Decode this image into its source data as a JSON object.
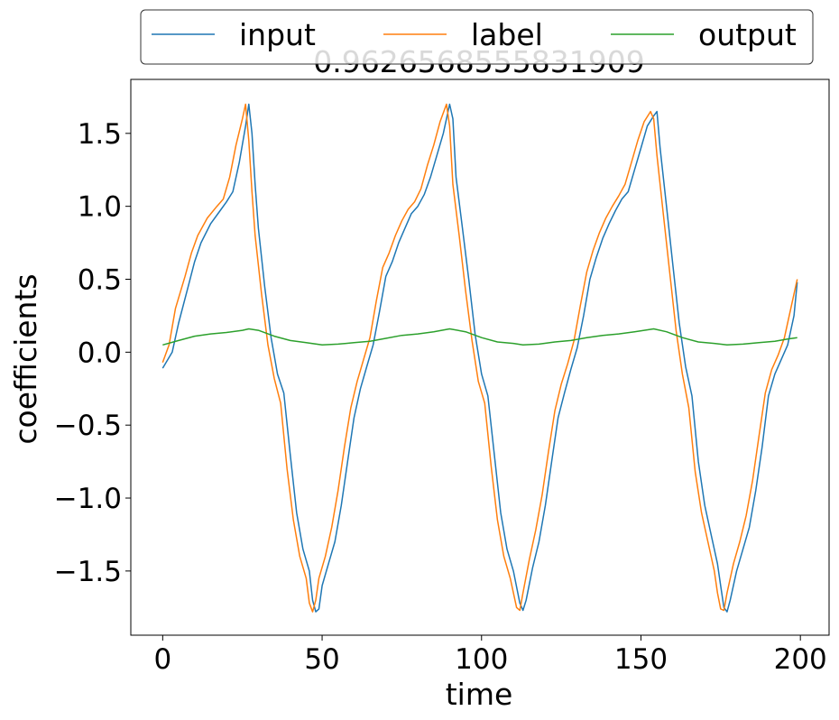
{
  "chart_data": {
    "type": "line",
    "title": "0.9626568555831909",
    "xlabel": "time",
    "ylabel": "coefficients",
    "xlim": [
      -10,
      209
    ],
    "ylim": [
      -1.94,
      1.87
    ],
    "x_ticks": [
      0,
      50,
      100,
      150,
      200
    ],
    "x_tick_labels": [
      "0",
      "50",
      "100",
      "150",
      "200"
    ],
    "y_ticks": [
      -1.5,
      -1.0,
      -0.5,
      0.0,
      0.5,
      1.0,
      1.5
    ],
    "y_tick_labels": [
      "−1.5",
      "−1.0",
      "−0.5",
      "0.0",
      "0.5",
      "1.0",
      "1.5"
    ],
    "grid": false,
    "legend_placement": "top-center above plot, 3 columns",
    "series": [
      {
        "name": "input",
        "color": "#1f77b4",
        "points": [
          [
            0,
            -0.11
          ],
          [
            3,
            0.0
          ],
          [
            5,
            0.2
          ],
          [
            8,
            0.45
          ],
          [
            10,
            0.62
          ],
          [
            12,
            0.75
          ],
          [
            15,
            0.88
          ],
          [
            18,
            0.97
          ],
          [
            20,
            1.03
          ],
          [
            22,
            1.1
          ],
          [
            24,
            1.3
          ],
          [
            26,
            1.55
          ],
          [
            27,
            1.7
          ],
          [
            28,
            1.5
          ],
          [
            29,
            1.15
          ],
          [
            30,
            0.85
          ],
          [
            32,
            0.45
          ],
          [
            34,
            0.1
          ],
          [
            36,
            -0.15
          ],
          [
            38,
            -0.28
          ],
          [
            40,
            -0.7
          ],
          [
            42,
            -1.1
          ],
          [
            44,
            -1.35
          ],
          [
            46,
            -1.5
          ],
          [
            47,
            -1.7
          ],
          [
            48,
            -1.78
          ],
          [
            49,
            -1.76
          ],
          [
            50,
            -1.6
          ],
          [
            52,
            -1.45
          ],
          [
            54,
            -1.3
          ],
          [
            56,
            -1.05
          ],
          [
            58,
            -0.75
          ],
          [
            60,
            -0.45
          ],
          [
            62,
            -0.25
          ],
          [
            64,
            -0.1
          ],
          [
            66,
            0.05
          ],
          [
            68,
            0.28
          ],
          [
            70,
            0.52
          ],
          [
            72,
            0.62
          ],
          [
            74,
            0.75
          ],
          [
            76,
            0.85
          ],
          [
            78,
            0.95
          ],
          [
            80,
            1.0
          ],
          [
            82,
            1.08
          ],
          [
            84,
            1.2
          ],
          [
            86,
            1.35
          ],
          [
            88,
            1.5
          ],
          [
            90,
            1.7
          ],
          [
            91,
            1.6
          ],
          [
            92,
            1.2
          ],
          [
            94,
            0.85
          ],
          [
            96,
            0.5
          ],
          [
            98,
            0.12
          ],
          [
            100,
            -0.15
          ],
          [
            102,
            -0.3
          ],
          [
            104,
            -0.7
          ],
          [
            106,
            -1.1
          ],
          [
            108,
            -1.35
          ],
          [
            110,
            -1.5
          ],
          [
            112,
            -1.72
          ],
          [
            113,
            -1.77
          ],
          [
            114,
            -1.7
          ],
          [
            116,
            -1.48
          ],
          [
            118,
            -1.3
          ],
          [
            120,
            -1.05
          ],
          [
            122,
            -0.75
          ],
          [
            124,
            -0.45
          ],
          [
            126,
            -0.28
          ],
          [
            128,
            -0.12
          ],
          [
            130,
            0.03
          ],
          [
            132,
            0.25
          ],
          [
            134,
            0.5
          ],
          [
            136,
            0.65
          ],
          [
            138,
            0.78
          ],
          [
            140,
            0.88
          ],
          [
            142,
            0.97
          ],
          [
            144,
            1.05
          ],
          [
            146,
            1.1
          ],
          [
            148,
            1.25
          ],
          [
            150,
            1.4
          ],
          [
            152,
            1.55
          ],
          [
            154,
            1.62
          ],
          [
            155,
            1.65
          ],
          [
            156,
            1.4
          ],
          [
            158,
            1.0
          ],
          [
            160,
            0.6
          ],
          [
            162,
            0.2
          ],
          [
            164,
            -0.1
          ],
          [
            166,
            -0.3
          ],
          [
            168,
            -0.75
          ],
          [
            170,
            -1.05
          ],
          [
            172,
            -1.25
          ],
          [
            174,
            -1.45
          ],
          [
            175,
            -1.6
          ],
          [
            176,
            -1.75
          ],
          [
            177,
            -1.78
          ],
          [
            178,
            -1.7
          ],
          [
            180,
            -1.5
          ],
          [
            182,
            -1.35
          ],
          [
            184,
            -1.2
          ],
          [
            186,
            -0.95
          ],
          [
            188,
            -0.65
          ],
          [
            190,
            -0.3
          ],
          [
            192,
            -0.15
          ],
          [
            194,
            -0.05
          ],
          [
            196,
            0.05
          ],
          [
            198,
            0.25
          ],
          [
            199,
            0.48
          ]
        ]
      },
      {
        "name": "label",
        "color": "#ff7f0e",
        "points": [
          [
            0,
            -0.07
          ],
          [
            2,
            0.05
          ],
          [
            4,
            0.3
          ],
          [
            7,
            0.52
          ],
          [
            9,
            0.68
          ],
          [
            11,
            0.8
          ],
          [
            14,
            0.92
          ],
          [
            17,
            1.0
          ],
          [
            19,
            1.05
          ],
          [
            21,
            1.2
          ],
          [
            23,
            1.42
          ],
          [
            25,
            1.6
          ],
          [
            26,
            1.7
          ],
          [
            27,
            1.45
          ],
          [
            28,
            1.1
          ],
          [
            29,
            0.8
          ],
          [
            31,
            0.4
          ],
          [
            33,
            0.05
          ],
          [
            35,
            -0.18
          ],
          [
            37,
            -0.35
          ],
          [
            39,
            -0.8
          ],
          [
            41,
            -1.15
          ],
          [
            43,
            -1.4
          ],
          [
            45,
            -1.55
          ],
          [
            46,
            -1.72
          ],
          [
            47,
            -1.78
          ],
          [
            48,
            -1.7
          ],
          [
            49,
            -1.55
          ],
          [
            51,
            -1.4
          ],
          [
            53,
            -1.2
          ],
          [
            55,
            -0.95
          ],
          [
            57,
            -0.65
          ],
          [
            59,
            -0.38
          ],
          [
            61,
            -0.2
          ],
          [
            63,
            -0.05
          ],
          [
            65,
            0.1
          ],
          [
            67,
            0.35
          ],
          [
            69,
            0.58
          ],
          [
            71,
            0.68
          ],
          [
            73,
            0.8
          ],
          [
            75,
            0.9
          ],
          [
            77,
            0.98
          ],
          [
            79,
            1.03
          ],
          [
            81,
            1.12
          ],
          [
            83,
            1.28
          ],
          [
            85,
            1.42
          ],
          [
            87,
            1.58
          ],
          [
            89,
            1.7
          ],
          [
            90,
            1.55
          ],
          [
            91,
            1.15
          ],
          [
            93,
            0.8
          ],
          [
            95,
            0.42
          ],
          [
            97,
            0.08
          ],
          [
            99,
            -0.2
          ],
          [
            101,
            -0.35
          ],
          [
            103,
            -0.78
          ],
          [
            105,
            -1.15
          ],
          [
            107,
            -1.4
          ],
          [
            109,
            -1.55
          ],
          [
            111,
            -1.75
          ],
          [
            112,
            -1.77
          ],
          [
            113,
            -1.65
          ],
          [
            115,
            -1.42
          ],
          [
            117,
            -1.22
          ],
          [
            119,
            -0.98
          ],
          [
            121,
            -0.68
          ],
          [
            123,
            -0.4
          ],
          [
            125,
            -0.22
          ],
          [
            127,
            -0.08
          ],
          [
            129,
            0.08
          ],
          [
            131,
            0.32
          ],
          [
            133,
            0.55
          ],
          [
            135,
            0.7
          ],
          [
            137,
            0.82
          ],
          [
            139,
            0.92
          ],
          [
            141,
            1.0
          ],
          [
            143,
            1.07
          ],
          [
            145,
            1.15
          ],
          [
            147,
            1.3
          ],
          [
            149,
            1.45
          ],
          [
            151,
            1.58
          ],
          [
            153,
            1.65
          ],
          [
            154,
            1.6
          ],
          [
            155,
            1.35
          ],
          [
            157,
            0.95
          ],
          [
            159,
            0.55
          ],
          [
            161,
            0.15
          ],
          [
            163,
            -0.15
          ],
          [
            165,
            -0.38
          ],
          [
            167,
            -0.82
          ],
          [
            169,
            -1.1
          ],
          [
            171,
            -1.3
          ],
          [
            173,
            -1.5
          ],
          [
            174,
            -1.65
          ],
          [
            175,
            -1.76
          ],
          [
            176,
            -1.77
          ],
          [
            177,
            -1.65
          ],
          [
            179,
            -1.45
          ],
          [
            181,
            -1.3
          ],
          [
            183,
            -1.12
          ],
          [
            185,
            -0.88
          ],
          [
            187,
            -0.58
          ],
          [
            189,
            -0.28
          ],
          [
            191,
            -0.12
          ],
          [
            193,
            -0.02
          ],
          [
            195,
            0.1
          ],
          [
            197,
            0.3
          ],
          [
            199,
            0.5
          ]
        ]
      },
      {
        "name": "output",
        "color": "#2ca02c",
        "points": [
          [
            0,
            0.05
          ],
          [
            5,
            0.08
          ],
          [
            10,
            0.11
          ],
          [
            15,
            0.125
          ],
          [
            20,
            0.135
          ],
          [
            25,
            0.15
          ],
          [
            27,
            0.16
          ],
          [
            30,
            0.15
          ],
          [
            35,
            0.11
          ],
          [
            40,
            0.08
          ],
          [
            45,
            0.065
          ],
          [
            50,
            0.05
          ],
          [
            55,
            0.055
          ],
          [
            60,
            0.065
          ],
          [
            65,
            0.075
          ],
          [
            70,
            0.095
          ],
          [
            75,
            0.115
          ],
          [
            80,
            0.125
          ],
          [
            85,
            0.14
          ],
          [
            90,
            0.16
          ],
          [
            95,
            0.14
          ],
          [
            100,
            0.1
          ],
          [
            105,
            0.07
          ],
          [
            110,
            0.06
          ],
          [
            113,
            0.05
          ],
          [
            118,
            0.055
          ],
          [
            123,
            0.07
          ],
          [
            128,
            0.08
          ],
          [
            133,
            0.1
          ],
          [
            138,
            0.115
          ],
          [
            143,
            0.125
          ],
          [
            148,
            0.14
          ],
          [
            154,
            0.16
          ],
          [
            158,
            0.14
          ],
          [
            163,
            0.1
          ],
          [
            168,
            0.07
          ],
          [
            173,
            0.06
          ],
          [
            177,
            0.05
          ],
          [
            182,
            0.055
          ],
          [
            187,
            0.065
          ],
          [
            192,
            0.075
          ],
          [
            196,
            0.09
          ],
          [
            199,
            0.1
          ]
        ]
      }
    ]
  }
}
